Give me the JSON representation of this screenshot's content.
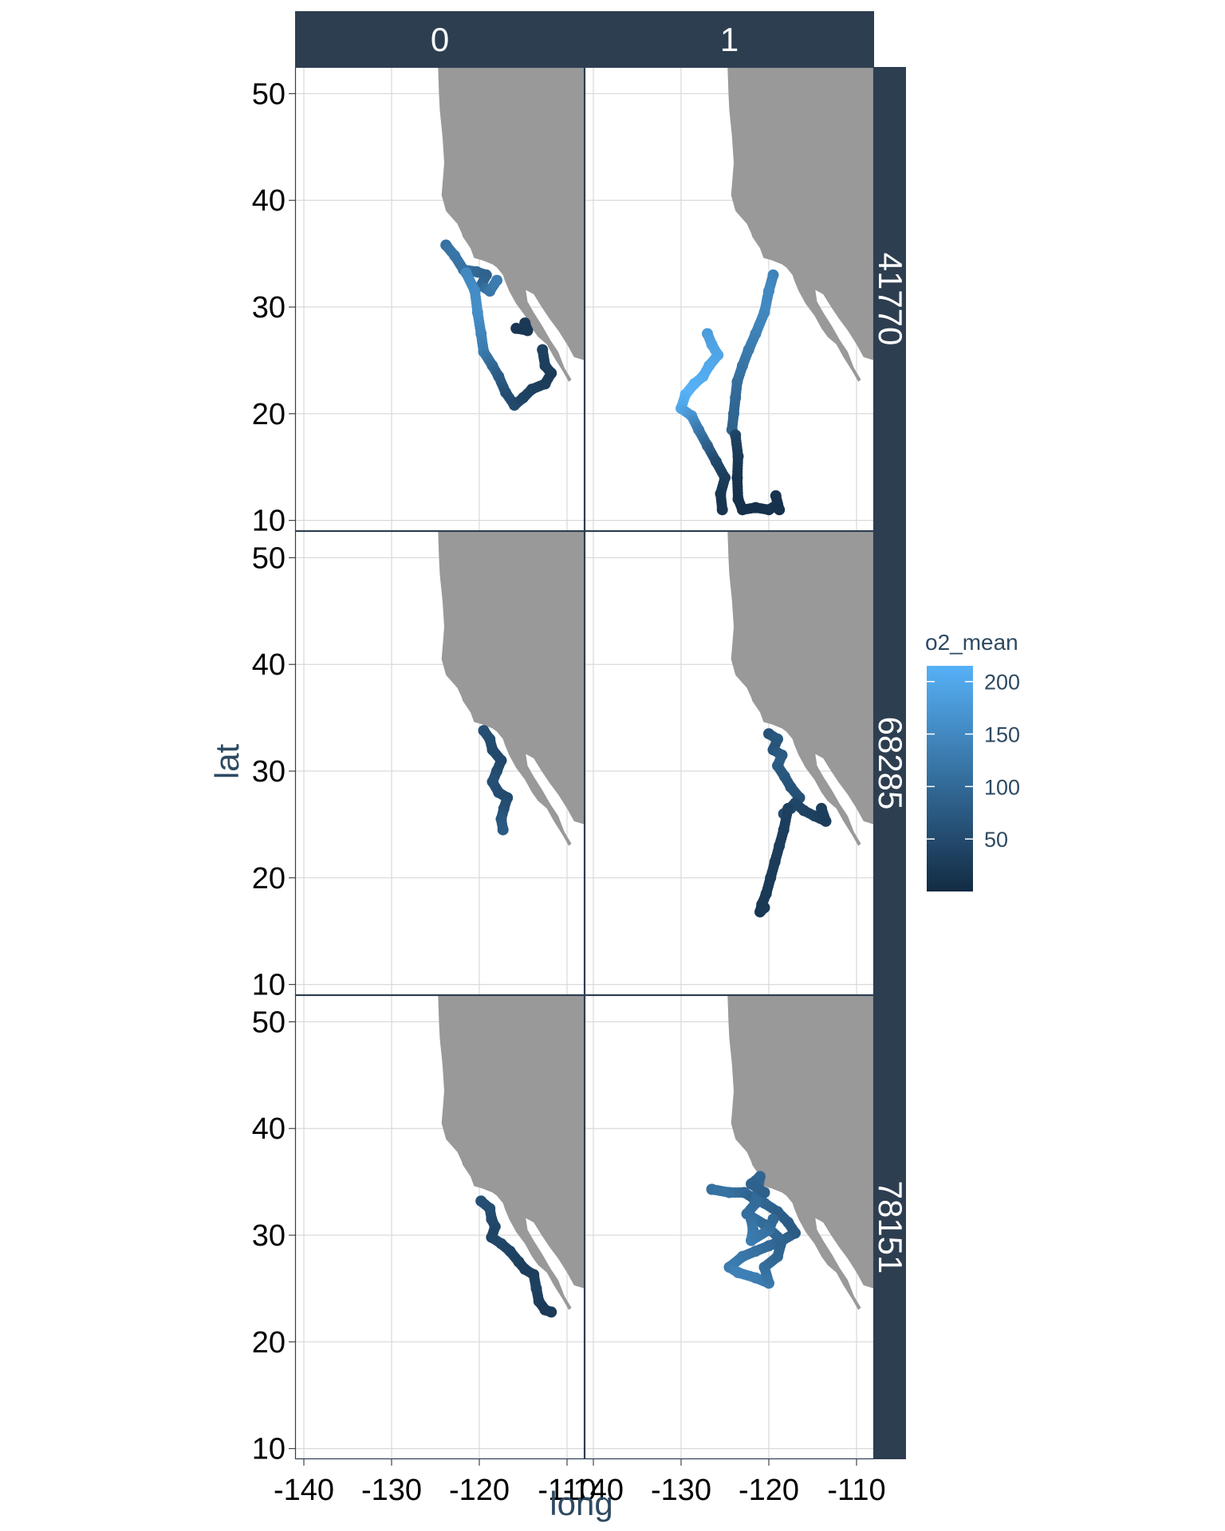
{
  "colors": {
    "strip": "#2d3e50",
    "land": "#999999",
    "grid": "#d9d9d9",
    "panel_border": "#2d3e50",
    "low": "#132b43",
    "high": "#56b1f7"
  },
  "chart_data": {
    "type": "scatter",
    "x_axis_label": "long",
    "y_axis_label": "lat",
    "x_ticks": [
      "-140",
      "-130",
      "-120",
      "-110"
    ],
    "y_ticks": [
      "10",
      "20",
      "30",
      "40",
      "50"
    ],
    "xlim": [
      -141,
      -108
    ],
    "ylim": [
      9,
      52.5
    ],
    "col_facets": [
      "0",
      "1"
    ],
    "row_facets": [
      "41770",
      "68285",
      "78151"
    ],
    "legend": {
      "title": "o2_mean",
      "ticks": [
        "50",
        "100",
        "150",
        "200"
      ],
      "tick_values": [
        50,
        100,
        150,
        200
      ],
      "range": [
        0,
        215
      ],
      "position": "right"
    },
    "coastline": [
      [
        -124.7,
        52.5
      ],
      [
        -124.6,
        50
      ],
      [
        -124.5,
        48.4
      ],
      [
        -124.2,
        46
      ],
      [
        -124.0,
        43.5
      ],
      [
        -124.3,
        40.5
      ],
      [
        -123.8,
        39
      ],
      [
        -122.5,
        37.8
      ],
      [
        -122.0,
        36.9
      ],
      [
        -121.9,
        36.6
      ],
      [
        -121.0,
        35.5
      ],
      [
        -120.6,
        34.6
      ],
      [
        -119.7,
        34.4
      ],
      [
        -118.5,
        34.0
      ],
      [
        -118.0,
        33.7
      ],
      [
        -117.3,
        33.0
      ],
      [
        -117.1,
        32.5
      ],
      [
        -116.6,
        31.5
      ],
      [
        -115.8,
        30.3
      ],
      [
        -114.8,
        29.2
      ],
      [
        -114.0,
        28.0
      ],
      [
        -113.3,
        27.2
      ],
      [
        -112.3,
        26.5
      ],
      [
        -111.5,
        25.3
      ],
      [
        -110.5,
        24.0
      ],
      [
        -109.8,
        23.0
      ],
      [
        -109.5,
        23.2
      ],
      [
        -110.3,
        24.3
      ],
      [
        -111.0,
        25.8
      ],
      [
        -111.9,
        26.9
      ],
      [
        -112.8,
        28.2
      ],
      [
        -113.8,
        29.5
      ],
      [
        -114.5,
        30.5
      ],
      [
        -114.7,
        31.6
      ],
      [
        -113.8,
        31.2
      ],
      [
        -112.9,
        30.0
      ],
      [
        -112.0,
        28.9
      ],
      [
        -111.0,
        27.8
      ],
      [
        -110.0,
        26.5
      ],
      [
        -109.2,
        25.3
      ],
      [
        -108.0,
        25.0
      ]
    ],
    "panels": [
      {
        "row": "41770",
        "col": "0",
        "tracks": [
          {
            "points": [
              [
                -123.8,
                35.8
              ],
              [
                -122.8,
                34.8
              ],
              [
                -121.8,
                33.5
              ],
              [
                -120.3,
                33.3
              ],
              [
                -119.2,
                33.0
              ],
              [
                -119.8,
                32.0
              ],
              [
                -118.8,
                31.5
              ],
              [
                -118.0,
                32.5
              ]
            ],
            "o2": [
              110,
              120,
              115,
              100,
              90,
              95,
              120,
              130
            ]
          },
          {
            "points": [
              [
                -121.5,
                33.2
              ],
              [
                -120.5,
                31.5
              ],
              [
                -120.2,
                29.5
              ],
              [
                -119.8,
                27.5
              ],
              [
                -119.5,
                25.8
              ],
              [
                -118.5,
                24.5
              ],
              [
                -117.8,
                23.5
              ],
              [
                -117.0,
                22.0
              ],
              [
                -116.0,
                20.8
              ],
              [
                -115.0,
                21.5
              ],
              [
                -114.0,
                22.3
              ],
              [
                -112.5,
                22.8
              ],
              [
                -111.8,
                23.8
              ],
              [
                -112.5,
                24.5
              ],
              [
                -112.8,
                26.0
              ]
            ],
            "o2": [
              150,
              155,
              160,
              145,
              130,
              100,
              80,
              60,
              50,
              40,
              35,
              30,
              25,
              30,
              35
            ]
          },
          {
            "points": [
              [
                -115.8,
                28.0
              ],
              [
                -114.5,
                27.8
              ],
              [
                -114.8,
                28.5
              ]
            ],
            "o2": [
              20,
              18,
              22
            ]
          }
        ]
      },
      {
        "row": "41770",
        "col": "1",
        "tracks": [
          {
            "points": [
              [
                -119.5,
                33.0
              ],
              [
                -120.0,
                31.5
              ],
              [
                -120.5,
                29.5
              ],
              [
                -121.5,
                27.5
              ],
              [
                -122.3,
                26.0
              ],
              [
                -123.0,
                24.5
              ],
              [
                -123.6,
                23.0
              ],
              [
                -123.8,
                21.5
              ],
              [
                -124.0,
                20.0
              ],
              [
                -124.2,
                18.5
              ]
            ],
            "o2": [
              140,
              150,
              150,
              140,
              130,
              120,
              110,
              100,
              95,
              90
            ]
          },
          {
            "points": [
              [
                -127.0,
                27.5
              ],
              [
                -126.5,
                26.5
              ],
              [
                -125.8,
                25.5
              ],
              [
                -126.8,
                24.5
              ],
              [
                -127.5,
                23.5
              ],
              [
                -128.5,
                22.8
              ],
              [
                -129.5,
                21.8
              ],
              [
                -130.0,
                20.5
              ],
              [
                -128.8,
                19.8
              ],
              [
                -128.0,
                18.5
              ],
              [
                -127.0,
                17.0
              ],
              [
                -126.0,
                15.5
              ],
              [
                -125.0,
                14.0
              ],
              [
                -125.5,
                12.5
              ],
              [
                -125.3,
                11.0
              ]
            ],
            "o2": [
              180,
              190,
              195,
              200,
              205,
              210,
              215,
              200,
              170,
              130,
              90,
              50,
              30,
              20,
              15
            ]
          },
          {
            "points": [
              [
                -123.8,
                18.0
              ],
              [
                -123.5,
                16.0
              ],
              [
                -123.6,
                14.0
              ],
              [
                -123.5,
                12.0
              ],
              [
                -123.0,
                11.0
              ],
              [
                -121.5,
                11.2
              ],
              [
                -120.0,
                11.0
              ],
              [
                -119.0,
                11.5
              ],
              [
                -119.2,
                12.3
              ],
              [
                -118.8,
                11.0
              ]
            ],
            "o2": [
              40,
              25,
              15,
              10,
              8,
              8,
              10,
              12,
              15,
              10
            ]
          }
        ]
      },
      {
        "row": "68285",
        "col": "0",
        "tracks": [
          {
            "points": [
              [
                -119.5,
                33.8
              ],
              [
                -118.8,
                33.0
              ],
              [
                -118.5,
                32.0
              ],
              [
                -117.5,
                31.0
              ],
              [
                -118.0,
                30.0
              ],
              [
                -118.5,
                29.0
              ],
              [
                -117.8,
                28.0
              ],
              [
                -116.8,
                27.5
              ],
              [
                -117.2,
                26.5
              ],
              [
                -117.5,
                25.5
              ],
              [
                -117.3,
                24.5
              ]
            ],
            "o2": [
              60,
              55,
              50,
              45,
              50,
              60,
              55,
              50,
              55,
              70,
              75
            ]
          }
        ]
      },
      {
        "row": "68285",
        "col": "1",
        "tracks": [
          {
            "points": [
              [
                -120.0,
                33.5
              ],
              [
                -119.0,
                33.0
              ],
              [
                -119.5,
                32.0
              ],
              [
                -118.5,
                31.5
              ],
              [
                -119.0,
                30.5
              ],
              [
                -118.2,
                29.5
              ],
              [
                -117.5,
                28.5
              ],
              [
                -116.5,
                27.5
              ],
              [
                -117.5,
                26.5
              ],
              [
                -118.3,
                26.0
              ],
              [
                -117.0,
                27.0
              ],
              [
                -116.0,
                26.3
              ],
              [
                -114.8,
                25.8
              ],
              [
                -113.5,
                25.3
              ],
              [
                -114.0,
                26.5
              ]
            ],
            "o2": [
              60,
              70,
              65,
              75,
              80,
              70,
              65,
              60,
              55,
              50,
              45,
              40,
              35,
              30,
              30
            ]
          },
          {
            "points": [
              [
                -117.8,
                26.5
              ],
              [
                -118.3,
                24.5
              ],
              [
                -118.8,
                23.0
              ],
              [
                -119.3,
                21.5
              ],
              [
                -119.8,
                20.0
              ],
              [
                -120.3,
                18.5
              ],
              [
                -120.8,
                17.5
              ],
              [
                -121.0,
                16.8
              ],
              [
                -120.5,
                17.2
              ]
            ],
            "o2": [
              35,
              32,
              30,
              28,
              26,
              24,
              22,
              20,
              22
            ]
          }
        ]
      },
      {
        "row": "78151",
        "col": "0",
        "tracks": [
          {
            "points": [
              [
                -119.8,
                33.2
              ],
              [
                -118.8,
                32.5
              ],
              [
                -118.6,
                31.5
              ],
              [
                -118.2,
                30.8
              ],
              [
                -118.6,
                29.8
              ],
              [
                -117.5,
                29.2
              ],
              [
                -116.5,
                28.5
              ],
              [
                -115.5,
                27.5
              ],
              [
                -114.8,
                26.8
              ],
              [
                -113.8,
                26.3
              ],
              [
                -113.5,
                25.0
              ],
              [
                -113.2,
                23.8
              ],
              [
                -112.5,
                23.0
              ],
              [
                -111.8,
                22.8
              ]
            ],
            "o2": [
              60,
              55,
              50,
              45,
              40,
              45,
              40,
              35,
              30,
              30,
              35,
              30,
              25,
              25
            ]
          }
        ]
      },
      {
        "row": "78151",
        "col": "1",
        "tracks": [
          {
            "points": [
              [
                -126.5,
                34.3
              ],
              [
                -124.5,
                34.0
              ],
              [
                -122.8,
                34.0
              ],
              [
                -121.8,
                33.5
              ],
              [
                -120.5,
                33.0
              ],
              [
                -119.0,
                32.2
              ],
              [
                -117.8,
                31.2
              ],
              [
                -117.0,
                30.2
              ],
              [
                -118.5,
                29.5
              ],
              [
                -120.0,
                29.0
              ],
              [
                -121.5,
                28.5
              ],
              [
                -123.0,
                28.0
              ],
              [
                -124.5,
                27.0
              ],
              [
                -123.5,
                26.5
              ],
              [
                -121.5,
                26.0
              ],
              [
                -120.0,
                25.5
              ],
              [
                -120.5,
                27.0
              ],
              [
                -119.0,
                28.0
              ],
              [
                -118.5,
                29.5
              ],
              [
                -120.5,
                31.0
              ],
              [
                -122.5,
                32.0
              ],
              [
                -121.5,
                33.0
              ],
              [
                -121.0,
                35.5
              ],
              [
                -122.0,
                34.8
              ],
              [
                -120.5,
                34.0
              ]
            ],
            "o2": [
              110,
              115,
              100,
              90,
              95,
              85,
              80,
              75,
              90,
              100,
              110,
              120,
              130,
              140,
              135,
              125,
              110,
              95,
              90,
              100,
              110,
              105,
              95,
              90,
              85
            ]
          },
          {
            "points": [
              [
                -122.0,
                31.5
              ],
              [
                -121.8,
                30.5
              ],
              [
                -122.0,
                29.5
              ],
              [
                -120.0,
                30.5
              ],
              [
                -119.5,
                31.5
              ]
            ],
            "o2": [
              110,
              120,
              130,
              115,
              100
            ]
          }
        ]
      }
    ]
  }
}
